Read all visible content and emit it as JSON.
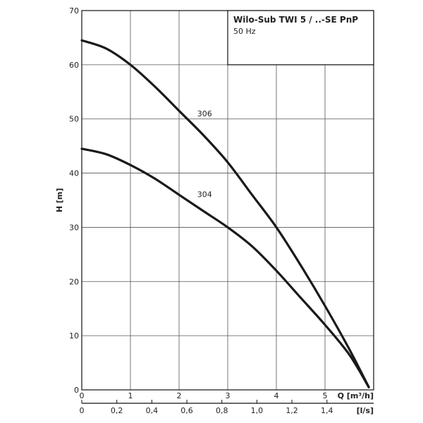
{
  "chart_data": {
    "type": "line",
    "title": "Wilo-Sub TWI 5 / ..-SE PnP",
    "subtitle": "50 Hz",
    "ylabel": "H [m]",
    "xlabel": "Q [m³/h]",
    "x2label": "[l/s]",
    "xlim": [
      0,
      6
    ],
    "ylim": [
      0,
      70
    ],
    "x2lim": [
      0,
      1.6667
    ],
    "xticks": [
      "0",
      "1",
      "2",
      "3",
      "4",
      "5"
    ],
    "yticks": [
      "0",
      "10",
      "20",
      "30",
      "40",
      "50",
      "60",
      "70"
    ],
    "x2ticks": [
      "0",
      "0,2",
      "0,4",
      "0,6",
      "0,8",
      "1,0",
      "1,2",
      "1,4"
    ],
    "grid": true,
    "series": [
      {
        "name": "306",
        "x": [
          0,
          0.5,
          1.0,
          1.5,
          2.0,
          2.5,
          3.0,
          3.5,
          4.0,
          4.5,
          5.0,
          5.5,
          5.9
        ],
        "y": [
          64.5,
          63.0,
          60.0,
          56.0,
          51.5,
          47.0,
          42.0,
          36.0,
          30.0,
          23.0,
          15.5,
          7.5,
          0.5
        ]
      },
      {
        "name": "304",
        "x": [
          0,
          0.5,
          1.0,
          1.5,
          2.0,
          2.5,
          3.0,
          3.5,
          4.0,
          4.5,
          5.0,
          5.5,
          5.9
        ],
        "y": [
          44.5,
          43.5,
          41.5,
          39.0,
          36.0,
          33.0,
          30.0,
          26.5,
          22.0,
          17.0,
          12.0,
          6.5,
          0.5
        ]
      }
    ]
  }
}
